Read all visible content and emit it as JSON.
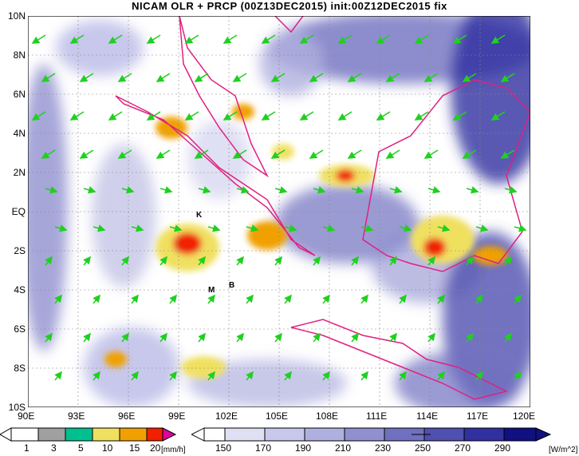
{
  "title": "NICAM OLR + PRCP (00Z13DEC2015) init:00Z12DEC2015 fix",
  "lat_labels": [
    "10N",
    "8N",
    "6N",
    "4N",
    "2N",
    "EQ",
    "2S",
    "4S",
    "6S",
    "8S",
    "10S"
  ],
  "lon_labels": [
    "90E",
    "93E",
    "96E",
    "99E",
    "102E",
    "105E",
    "108E",
    "111E",
    "114E",
    "117E",
    "120E"
  ],
  "markers": [
    "K",
    "M",
    "B"
  ],
  "precip_legend": {
    "levels": [
      "1",
      "3",
      "5",
      "10",
      "15",
      "20"
    ],
    "unit": "[mm/h]",
    "colors": [
      "#a0a0a0",
      "#00c090",
      "#f0e060",
      "#f0a000",
      "#f02000",
      "#e000a0"
    ]
  },
  "olr_legend": {
    "levels": [
      "150",
      "170",
      "190",
      "210",
      "230",
      "250",
      "270",
      "290"
    ],
    "unit": "[W/m^2]",
    "colors": [
      "#ffffff",
      "#e0e0f4",
      "#c8c8ec",
      "#b0b0e0",
      "#9090d0",
      "#7070c0",
      "#5050b0",
      "#3030a0",
      "#101080"
    ]
  },
  "arrow_color": "#20d020",
  "coast_color": "#e02080"
}
